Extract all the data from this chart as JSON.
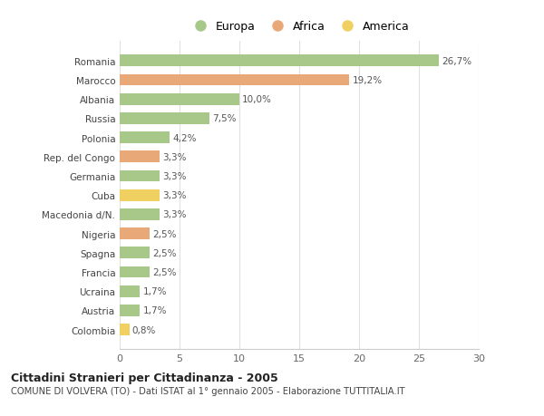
{
  "categories": [
    "Romania",
    "Marocco",
    "Albania",
    "Russia",
    "Polonia",
    "Rep. del Congo",
    "Germania",
    "Cuba",
    "Macedonia d/N.",
    "Nigeria",
    "Spagna",
    "Francia",
    "Ucraina",
    "Austria",
    "Colombia"
  ],
  "values": [
    26.7,
    19.2,
    10.0,
    7.5,
    4.2,
    3.3,
    3.3,
    3.3,
    3.3,
    2.5,
    2.5,
    2.5,
    1.7,
    1.7,
    0.8
  ],
  "labels": [
    "26,7%",
    "19,2%",
    "10,0%",
    "7,5%",
    "4,2%",
    "3,3%",
    "3,3%",
    "3,3%",
    "3,3%",
    "2,5%",
    "2,5%",
    "2,5%",
    "1,7%",
    "1,7%",
    "0,8%"
  ],
  "continent": [
    "Europa",
    "Africa",
    "Europa",
    "Europa",
    "Europa",
    "Africa",
    "Europa",
    "America",
    "Europa",
    "Africa",
    "Europa",
    "Europa",
    "Europa",
    "Europa",
    "America"
  ],
  "colors": {
    "Europa": "#a8c88a",
    "Africa": "#e8a878",
    "America": "#f0d060"
  },
  "title": "Cittadini Stranieri per Cittadinanza - 2005",
  "subtitle": "COMUNE DI VOLVERA (TO) - Dati ISTAT al 1° gennaio 2005 - Elaborazione TUTTITALIA.IT",
  "xlim": [
    0,
    30
  ],
  "xticks": [
    0,
    5,
    10,
    15,
    20,
    25,
    30
  ],
  "background_color": "#ffffff",
  "grid_color": "#e0e0e0"
}
